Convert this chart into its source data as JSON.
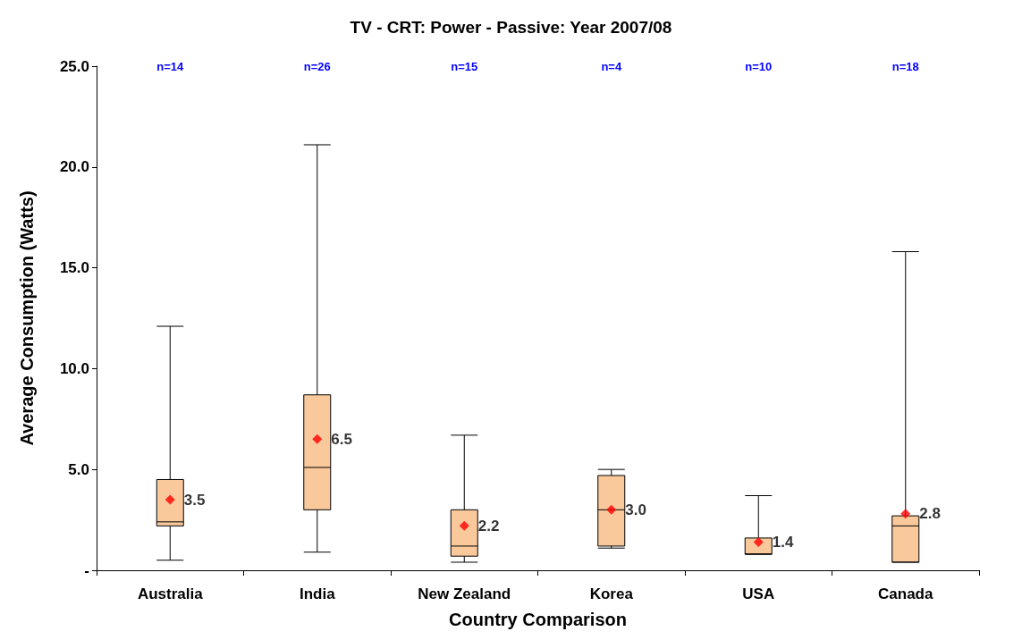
{
  "chart_data": {
    "type": "box",
    "title": "TV - CRT: Power - Passive: Year 2007/08",
    "xlabel": "Country Comparison",
    "ylabel": "Average Consumption (Watts)",
    "categories": [
      "Australia",
      "India",
      "New Zealand",
      "Korea",
      "USA",
      "Canada"
    ],
    "ylim": [
      0,
      25
    ],
    "yticks": [
      {
        "value": 0,
        "label": "-"
      },
      {
        "value": 5,
        "label": "5.0"
      },
      {
        "value": 10,
        "label": "10.0"
      },
      {
        "value": 15,
        "label": "15.0"
      },
      {
        "value": 20,
        "label": "20.0"
      },
      {
        "value": 25,
        "label": "25.0"
      }
    ],
    "series": [
      {
        "color": "#f9c89b",
        "boxes": [
          {
            "low": 0.5,
            "q1": 2.2,
            "median": 2.4,
            "q3": 4.5,
            "high": 12.1
          },
          {
            "low": 0.9,
            "q1": 3.0,
            "median": 5.1,
            "q3": 8.7,
            "high": 21.1
          },
          {
            "low": 0.4,
            "q1": 0.7,
            "median": 1.2,
            "q3": 3.0,
            "high": 6.7
          },
          {
            "low": 1.1,
            "q1": 1.2,
            "median": 3.0,
            "q3": 4.7,
            "high": 5.0
          },
          {
            "low": 0.8,
            "q1": 0.8,
            "median": 0.8,
            "q3": 1.6,
            "high": 3.7
          },
          {
            "low": 0.4,
            "q1": 0.4,
            "median": 2.2,
            "q3": 2.7,
            "high": 15.8
          }
        ]
      },
      {
        "type": "scatter",
        "color": "#ff0000",
        "marker": "diamond",
        "x": [
          "Australia",
          "India",
          "New Zealand",
          "Korea",
          "USA",
          "Canada"
        ],
        "values": [
          3.5,
          6.5,
          2.2,
          3.0,
          1.4,
          2.8
        ],
        "value_labels": [
          "3.5",
          "6.5",
          "2.2",
          "3.0",
          "1.4",
          "2.8"
        ]
      }
    ],
    "annotations": [
      "n=14",
      "n=26",
      "n=15",
      "n=4",
      "n=10",
      "n=18"
    ]
  }
}
